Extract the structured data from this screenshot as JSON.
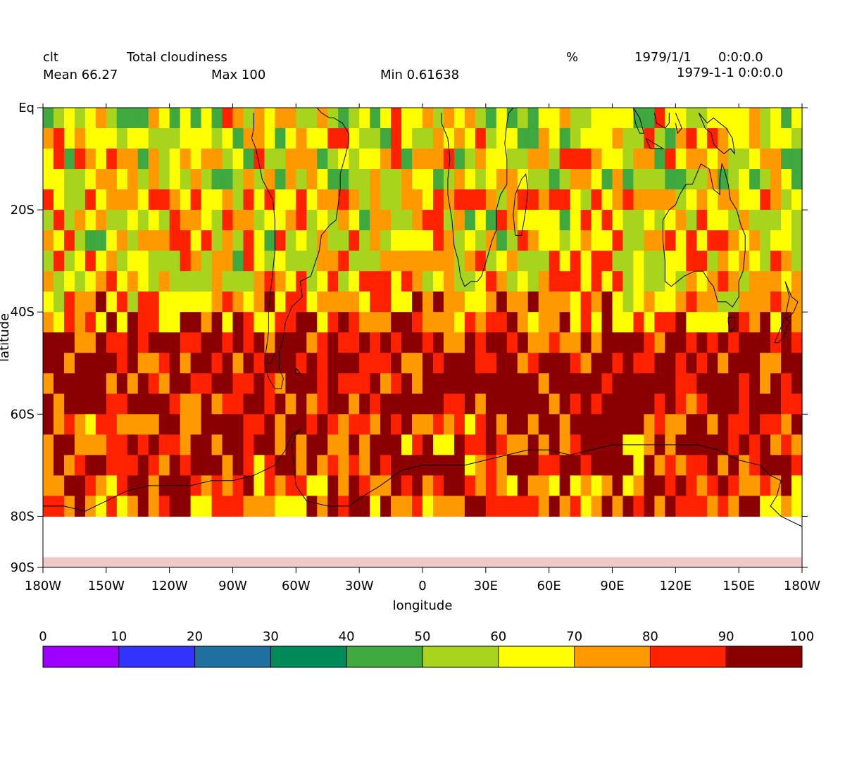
{
  "header": {
    "variable": "clt",
    "long_name": "Total cloudiness",
    "units": "%",
    "date": "1979/1/1",
    "time": "0:0:0.0",
    "datetime": "1979-1-1 0:0:0.0",
    "mean": "Mean 66.27",
    "max": "Max 100",
    "min": "Min 0.61638"
  },
  "chart_data": {
    "type": "heatmap",
    "title": "Total cloudiness",
    "xlabel": "longitude",
    "ylabel": "latitude",
    "xlim": [
      -180,
      180
    ],
    "ylim": [
      -90,
      0
    ],
    "x_ticks": [
      {
        "value": -180,
        "label": "180W"
      },
      {
        "value": -150,
        "label": "150W"
      },
      {
        "value": -120,
        "label": "120W"
      },
      {
        "value": -90,
        "label": "90W"
      },
      {
        "value": -60,
        "label": "60W"
      },
      {
        "value": -30,
        "label": "30W"
      },
      {
        "value": 0,
        "label": "0"
      },
      {
        "value": 30,
        "label": "30E"
      },
      {
        "value": 60,
        "label": "60E"
      },
      {
        "value": 90,
        "label": "90E"
      },
      {
        "value": 120,
        "label": "120E"
      },
      {
        "value": 150,
        "label": "150E"
      },
      {
        "value": 180,
        "label": "180W"
      }
    ],
    "y_ticks": [
      {
        "value": 0,
        "label": "Eq"
      },
      {
        "value": -20,
        "label": "20S"
      },
      {
        "value": -40,
        "label": "40S"
      },
      {
        "value": -60,
        "label": "60S"
      },
      {
        "value": -80,
        "label": "80S"
      },
      {
        "value": -90,
        "label": "90S"
      }
    ],
    "grid": {
      "lon_step": 5,
      "lat_step": 4
    },
    "band_means": [
      62,
      66,
      65,
      60,
      70,
      67,
      66,
      68,
      70,
      76,
      80,
      90,
      94,
      93,
      93,
      88,
      86,
      86,
      82,
      82
    ],
    "colorbar": {
      "ticks": [
        0,
        10,
        20,
        30,
        40,
        50,
        60,
        70,
        80,
        90,
        100
      ],
      "stops": [
        "#9b00ff",
        "#3333ff",
        "#1f6f9f",
        "#008a5a",
        "#3fa83f",
        "#a8d41e",
        "#ffff00",
        "#ff9900",
        "#ff2200",
        "#8a0000"
      ]
    }
  }
}
